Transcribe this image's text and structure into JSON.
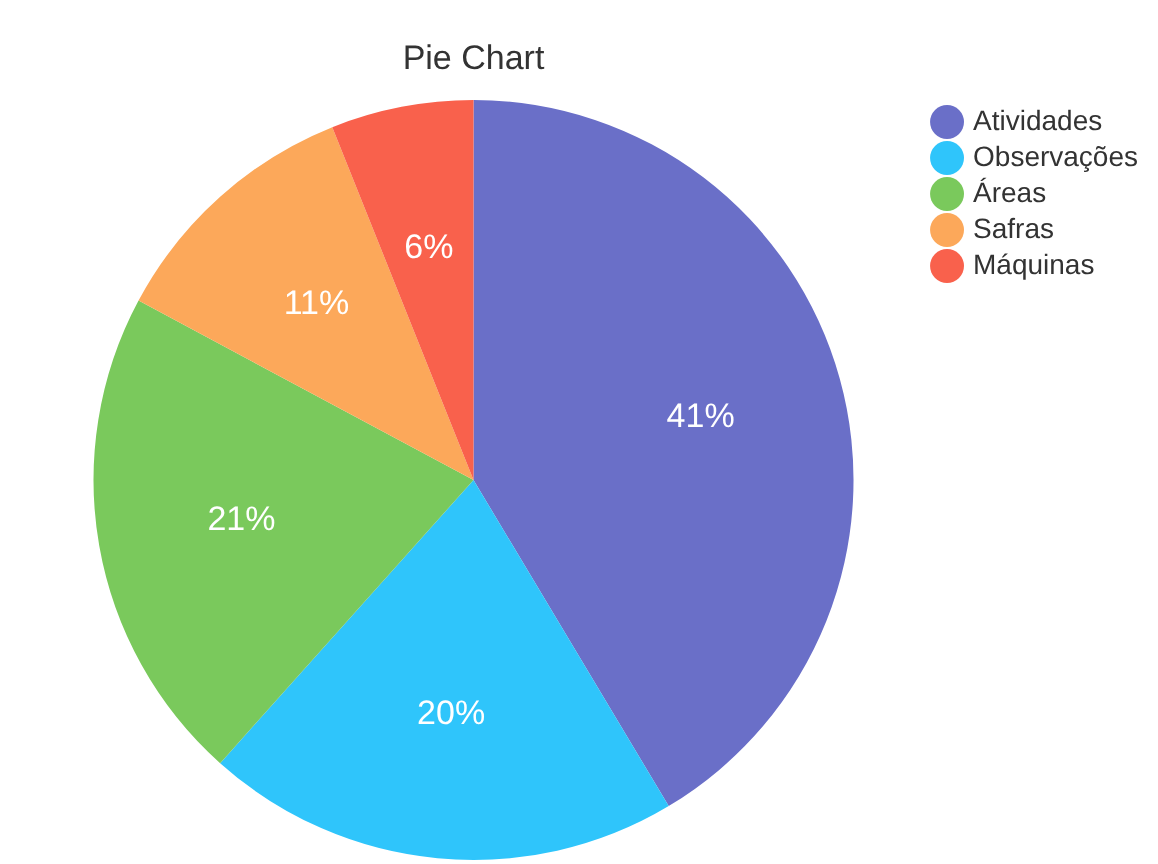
{
  "chart_data": {
    "type": "pie",
    "title": "Pie Chart",
    "categories": [
      "Atividades",
      "Observações",
      "Áreas",
      "Safras",
      "Máquinas"
    ],
    "values": [
      41,
      20,
      21,
      11,
      6
    ],
    "colors": [
      "#6a6fc8",
      "#2fc5fb",
      "#7ac95c",
      "#fca85a",
      "#f9614c"
    ],
    "value_labels": [
      "41%",
      "20%",
      "21%",
      "11%",
      "6%"
    ],
    "legend": "top right"
  }
}
